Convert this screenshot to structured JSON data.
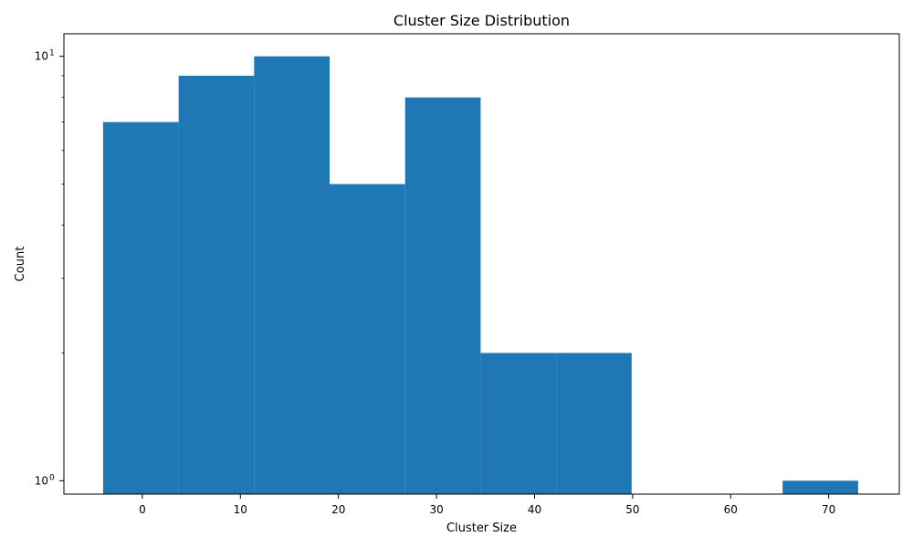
{
  "chart_data": {
    "type": "bar",
    "title": "Cluster Size Distribution",
    "xlabel": "Cluster Size",
    "ylabel": "Count",
    "yscale": "log",
    "xlim": [
      -8,
      77.2
    ],
    "ylim": [
      0.93,
      11.3
    ],
    "xticks": [
      0,
      10,
      20,
      30,
      40,
      50,
      60,
      70
    ],
    "xtick_labels": [
      "0",
      "10",
      "20",
      "30",
      "40",
      "50",
      "60",
      "70"
    ],
    "ytick_labels": [
      {
        "value": 1,
        "base": "10",
        "exp": "0"
      },
      {
        "value": 10,
        "base": "10",
        "exp": "1"
      }
    ],
    "bin_edges": [
      -4,
      3.7,
      11.4,
      19.1,
      26.8,
      34.5,
      42.2,
      49.9,
      57.6,
      65.3,
      73.0
    ],
    "values": [
      7,
      9,
      10,
      5,
      8,
      2,
      2,
      0,
      0,
      1
    ],
    "color": "#1f77b4",
    "grid": false
  }
}
